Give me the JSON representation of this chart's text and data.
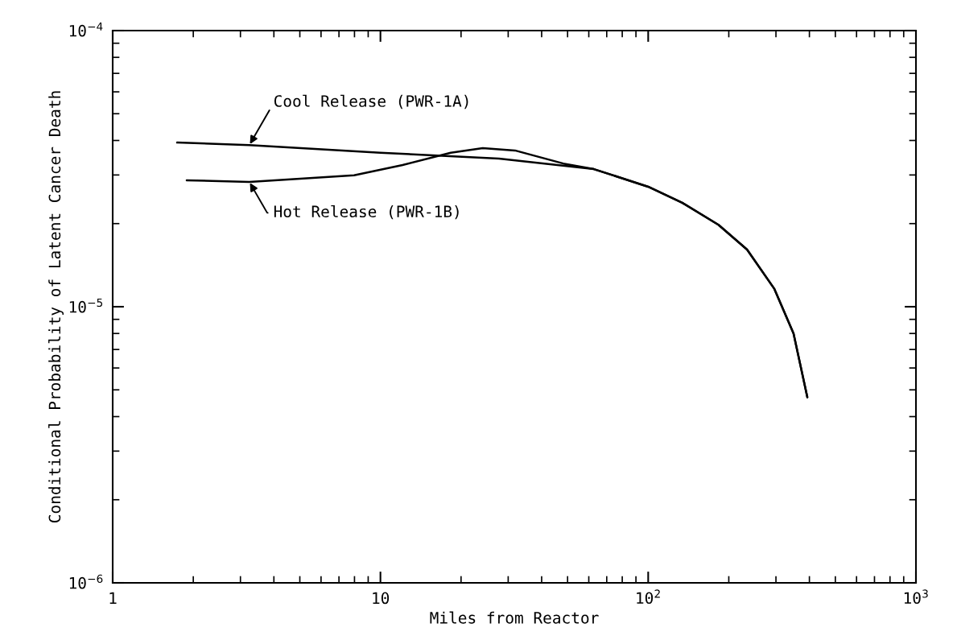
{
  "chart_data": {
    "type": "line",
    "xlabel": "Miles from Reactor",
    "ylabel": "Conditional Probability of Latent Cancer Death",
    "log": "xy",
    "grid": false,
    "legend": false,
    "marker": "none",
    "line_style": "solid",
    "xlim": [
      1,
      1000
    ],
    "xticks": [
      1,
      10,
      {
        "value": 100,
        "label": "10$^{2}$"
      },
      {
        "value": 1000,
        "label": "10$^{3}$"
      }
    ],
    "ylim": [
      1e-06,
      0.0001
    ],
    "yticks": [
      {
        "value": 1e-06,
        "label": "10$^{−6}$"
      },
      {
        "value": 1e-05,
        "label": "10$^{−5}$"
      },
      {
        "value": 0.0001,
        "label": "10$^{−4}$"
      }
    ],
    "series": [
      {
        "name": "Cool Release (PWR-1A)",
        "color": "#000000",
        "x": [
          1.74,
          3.24,
          10,
          27.7,
          62.7,
          100,
          134,
          183,
          234,
          296,
          349,
          393
        ],
        "values": [
          3.93e-05,
          3.85e-05,
          3.61e-05,
          3.44e-05,
          3.15e-05,
          2.72e-05,
          2.38e-05,
          1.98e-05,
          1.61e-05,
          1.16e-05,
          8e-06,
          4.7e-06
        ]
      },
      {
        "name": "Hot Release (PWR-1B)",
        "color": "#000000",
        "x": [
          1.89,
          3.24,
          7.97,
          12.1,
          18.3,
          24.1,
          31.8,
          48.2,
          62.7,
          100,
          134,
          183,
          234,
          296,
          349,
          393
        ],
        "values": [
          2.87e-05,
          2.83e-05,
          2.99e-05,
          3.26e-05,
          3.61e-05,
          3.75e-05,
          3.68e-05,
          3.3e-05,
          3.15e-05,
          2.72e-05,
          2.38e-05,
          1.98e-05,
          1.61e-05,
          1.16e-05,
          8e-06,
          4.7e-06
        ]
      }
    ]
  }
}
